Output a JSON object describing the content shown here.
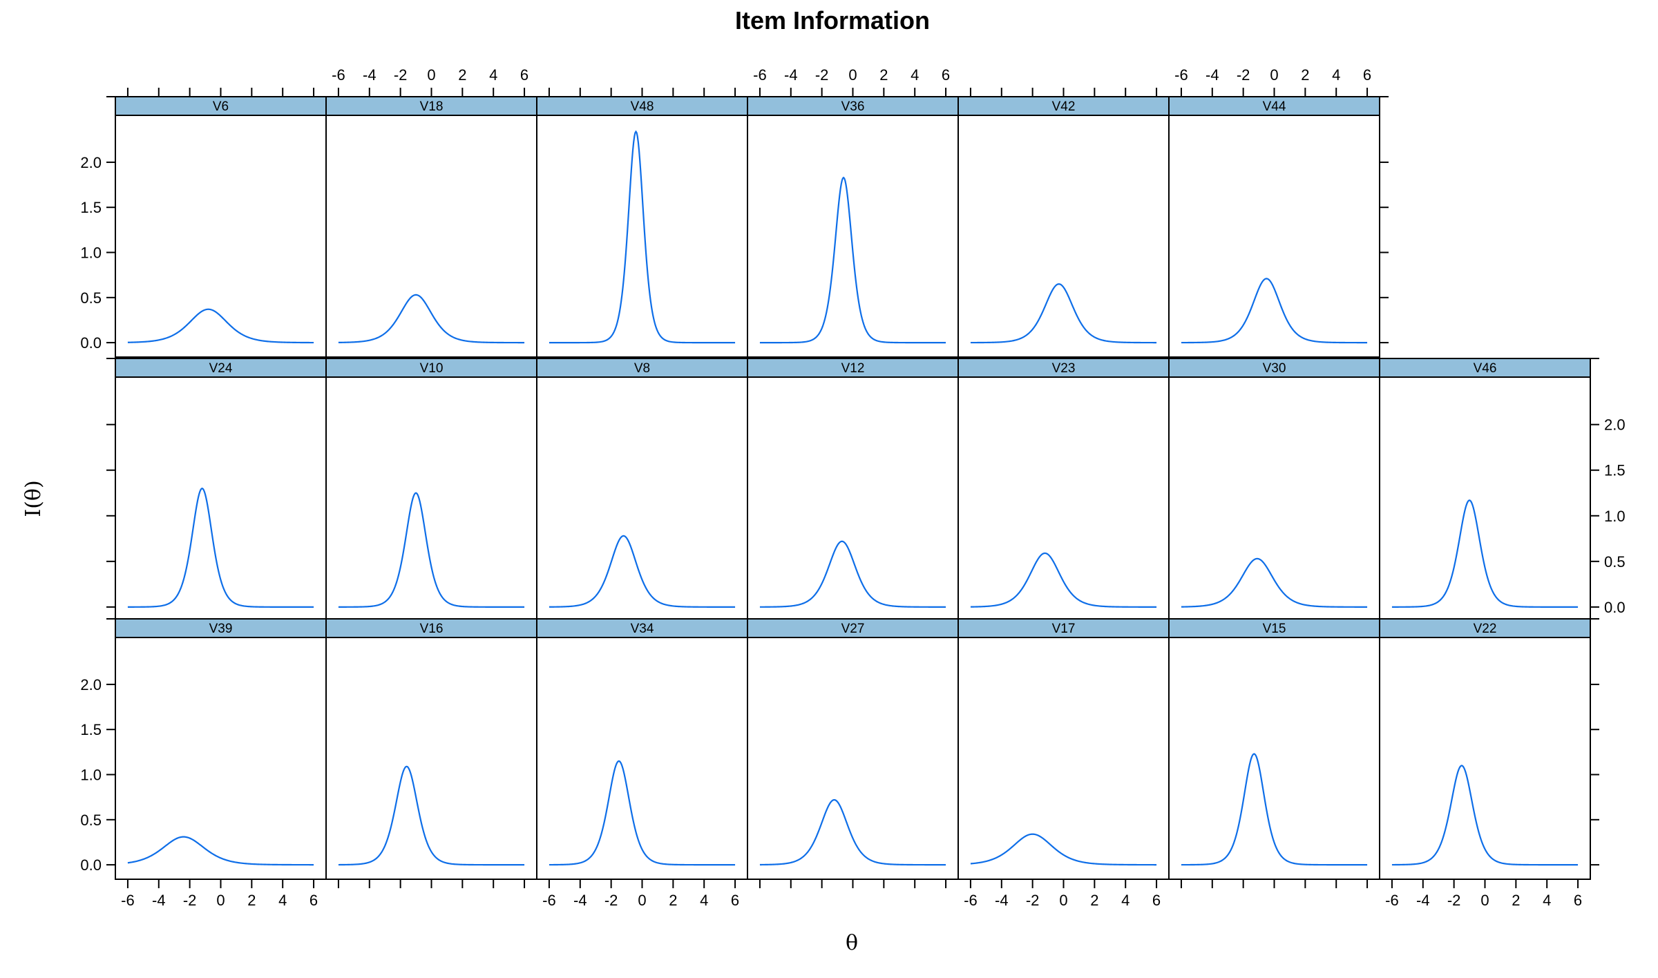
{
  "chart_data": {
    "type": "line",
    "title": "Item Information",
    "xlabel": "θ",
    "ylabel": "I(θ)",
    "xlim": [
      -6.8,
      6.8
    ],
    "ylim": [
      -0.16,
      2.52
    ],
    "x_ticks": [
      -6,
      -4,
      -2,
      0,
      2,
      4,
      6
    ],
    "y_ticks": [
      0.0,
      0.5,
      1.0,
      1.5,
      2.0
    ],
    "x_tick_labels": [
      "-6",
      "-4",
      "-2",
      "0",
      "2",
      "4",
      "6"
    ],
    "y_tick_labels": [
      "0.0",
      "0.5",
      "1.0",
      "1.5",
      "2.0"
    ],
    "line_color": "#0e6ee8",
    "strip_color": "#92bfdc",
    "grid": false,
    "layout": "lattice panels, 3 rows; top row has 6 panels",
    "panels": [
      {
        "name": "V6",
        "peak_theta": -0.8,
        "peak_info": 0.37
      },
      {
        "name": "V18",
        "peak_theta": -1.0,
        "peak_info": 0.53
      },
      {
        "name": "V48",
        "peak_theta": -0.4,
        "peak_info": 2.34
      },
      {
        "name": "V36",
        "peak_theta": -0.6,
        "peak_info": 1.83
      },
      {
        "name": "V42",
        "peak_theta": -0.3,
        "peak_info": 0.65
      },
      {
        "name": "V44",
        "peak_theta": -0.5,
        "peak_info": 0.71
      },
      {
        "name": "V24",
        "peak_theta": -1.2,
        "peak_info": 1.3
      },
      {
        "name": "V10",
        "peak_theta": -1.0,
        "peak_info": 1.25
      },
      {
        "name": "V8",
        "peak_theta": -1.2,
        "peak_info": 0.78
      },
      {
        "name": "V12",
        "peak_theta": -0.7,
        "peak_info": 0.72
      },
      {
        "name": "V23",
        "peak_theta": -1.2,
        "peak_info": 0.59
      },
      {
        "name": "V30",
        "peak_theta": -1.1,
        "peak_info": 0.53
      },
      {
        "name": "V46",
        "peak_theta": -1.0,
        "peak_info": 1.17
      },
      {
        "name": "V39",
        "peak_theta": -2.4,
        "peak_info": 0.31
      },
      {
        "name": "V16",
        "peak_theta": -1.6,
        "peak_info": 1.09
      },
      {
        "name": "V34",
        "peak_theta": -1.5,
        "peak_info": 1.15
      },
      {
        "name": "V27",
        "peak_theta": -1.2,
        "peak_info": 0.72
      },
      {
        "name": "V17",
        "peak_theta": -2.0,
        "peak_info": 0.34
      },
      {
        "name": "V15",
        "peak_theta": -1.3,
        "peak_info": 1.23
      },
      {
        "name": "V22",
        "peak_theta": -1.5,
        "peak_info": 1.1
      }
    ]
  }
}
